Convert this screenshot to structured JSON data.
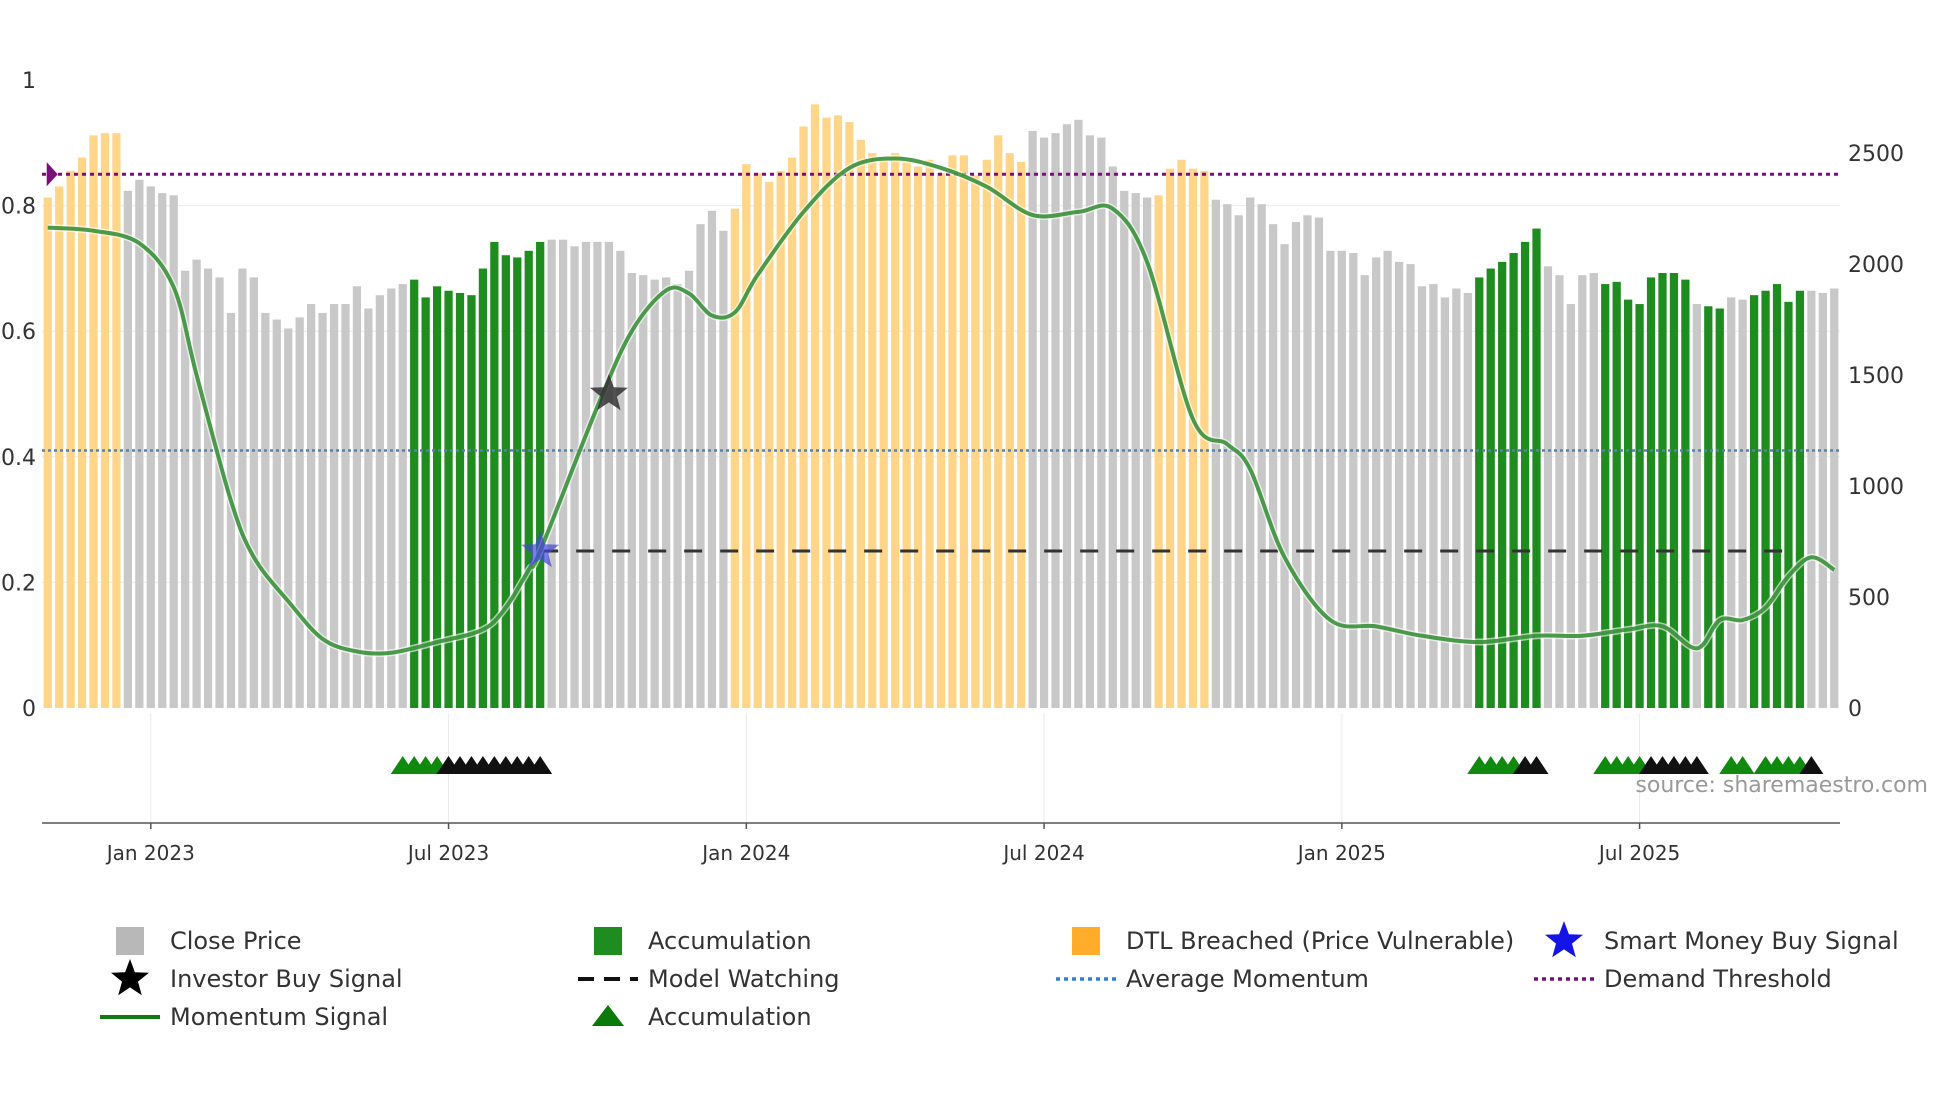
{
  "chart_data": {
    "type": "bar",
    "source": "source: sharemaestro.com",
    "left_axis": {
      "min": 0,
      "max": 1,
      "ticks": [
        0,
        0.2,
        0.4,
        0.6,
        0.8
      ],
      "tick_labels": [
        "0",
        "0.2",
        "0.4",
        "0.6",
        "0.8"
      ],
      "top_label": "1"
    },
    "right_axis": {
      "min": 0,
      "max": 2800,
      "ticks": [
        0,
        500,
        1000,
        1500,
        2000,
        2500
      ],
      "tick_labels": [
        "0",
        "500",
        "1000",
        "1500",
        "2000",
        "2500"
      ]
    },
    "x_axis": {
      "start_week": -4,
      "end_week": 152,
      "ticks": [
        {
          "week": 5,
          "label": "Jan 2023"
        },
        {
          "week": 31,
          "label": "Jul 2023"
        },
        {
          "week": 57,
          "label": "Jan 2024"
        },
        {
          "week": 83,
          "label": "Jul 2024"
        },
        {
          "week": 109,
          "label": "Jan 2025"
        },
        {
          "week": 135,
          "label": "Jul 2025"
        }
      ]
    },
    "close_price": [
      2300,
      2350,
      2420,
      2480,
      2580,
      2590,
      2590,
      2330,
      2380,
      2350,
      2320,
      2310,
      1970,
      2020,
      1980,
      1940,
      1780,
      1980,
      1940,
      1780,
      1750,
      1710,
      1760,
      1820,
      1780,
      1820,
      1820,
      1900,
      1800,
      1860,
      1890,
      1910,
      1930,
      1850,
      1900,
      1880,
      1870,
      1860,
      1980,
      2100,
      2040,
      2030,
      2060,
      2100,
      2110,
      2110,
      2080,
      2100,
      2100,
      2100,
      2060,
      1960,
      1950,
      1930,
      1940,
      1910,
      1970,
      2180,
      2240,
      2150,
      2250,
      2450,
      2410,
      2370,
      2420,
      2480,
      2620,
      2720,
      2660,
      2670,
      2640,
      2560,
      2500,
      2470,
      2500,
      2460,
      2440,
      2470,
      2410,
      2490,
      2490,
      2400,
      2470,
      2580,
      2500,
      2460,
      2600,
      2570,
      2590,
      2630,
      2650,
      2580,
      2570,
      2440,
      2330,
      2320,
      2300,
      2310,
      2430,
      2470,
      2430,
      2420,
      2290,
      2270,
      2220,
      2300,
      2270,
      2180,
      2090,
      2190,
      2220,
      2210,
      2060,
      2060,
      2050,
      1950,
      2030,
      2060,
      2010,
      2000,
      1900,
      1910,
      1850,
      1890,
      1870,
      1940,
      1980,
      2010,
      2050,
      2100,
      2160,
      1990,
      1950,
      1820,
      1950,
      1960,
      1910,
      1920,
      1840,
      1820,
      1940,
      1960,
      1960,
      1930,
      1820,
      1810,
      1800,
      1850,
      1840,
      1860,
      1880,
      1910,
      1830,
      1880,
      1880,
      1870,
      1890
    ],
    "accumulation_ranges": [
      [
        28,
        39
      ],
      [
        121,
        126
      ],
      [
        132,
        139
      ],
      [
        141,
        142
      ],
      [
        145,
        149
      ]
    ],
    "dtl_breached_ranges": [
      [
        -4,
        2
      ],
      [
        56,
        81
      ],
      [
        93,
        97
      ]
    ],
    "demand_threshold": 0.85,
    "average_momentum": 0.41,
    "model_watching": {
      "level": 0.25,
      "from_week": 39,
      "to_week": 148
    },
    "momentum_signal": [
      [
        -4,
        0.765
      ],
      [
        0,
        0.76
      ],
      [
        4,
        0.74
      ],
      [
        7,
        0.67
      ],
      [
        9,
        0.53
      ],
      [
        12,
        0.33
      ],
      [
        14,
        0.24
      ],
      [
        17,
        0.17
      ],
      [
        20,
        0.11
      ],
      [
        23,
        0.09
      ],
      [
        26,
        0.088
      ],
      [
        30,
        0.105
      ],
      [
        34,
        0.125
      ],
      [
        36,
        0.16
      ],
      [
        38,
        0.22
      ],
      [
        39,
        0.25
      ],
      [
        44,
        0.48
      ],
      [
        47,
        0.6
      ],
      [
        50,
        0.665
      ],
      [
        52,
        0.66
      ],
      [
        54,
        0.625
      ],
      [
        56,
        0.63
      ],
      [
        58,
        0.69
      ],
      [
        62,
        0.79
      ],
      [
        66,
        0.86
      ],
      [
        70,
        0.875
      ],
      [
        74,
        0.86
      ],
      [
        78,
        0.83
      ],
      [
        82,
        0.785
      ],
      [
        86,
        0.79
      ],
      [
        89,
        0.795
      ],
      [
        92,
        0.71
      ],
      [
        96,
        0.46
      ],
      [
        99,
        0.42
      ],
      [
        101,
        0.38
      ],
      [
        104,
        0.24
      ],
      [
        108,
        0.14
      ],
      [
        112,
        0.13
      ],
      [
        116,
        0.115
      ],
      [
        121,
        0.105
      ],
      [
        126,
        0.115
      ],
      [
        130,
        0.115
      ],
      [
        134,
        0.125
      ],
      [
        137,
        0.13
      ],
      [
        140,
        0.095
      ],
      [
        142,
        0.14
      ],
      [
        144,
        0.14
      ],
      [
        146,
        0.16
      ],
      [
        148,
        0.21
      ],
      [
        150,
        0.24
      ],
      [
        152,
        0.22
      ]
    ],
    "investor_buy_signals": [
      {
        "week": 45,
        "value": 0.5
      }
    ],
    "smart_money_buy_signals": [
      {
        "week": 39,
        "value": 0.25
      }
    ],
    "demand_markers": [
      {
        "week": -4,
        "value": 0.85
      }
    ],
    "accumulation_markers": {
      "green": [
        27,
        28,
        29,
        30,
        31,
        121,
        122,
        123,
        124,
        132,
        133,
        134,
        135,
        143,
        144,
        146,
        147,
        148,
        149
      ],
      "black": [
        31,
        32,
        33,
        34,
        35,
        36,
        37,
        38,
        39,
        125,
        126,
        136,
        137,
        138,
        139,
        140,
        150
      ]
    },
    "legend": [
      {
        "label": "Close Price",
        "icon": "gray-square",
        "color": "#b8b8b8"
      },
      {
        "label": "Accumulation",
        "icon": "green-square",
        "color": "#1e8c1e"
      },
      {
        "label": "DTL Breached (Price Vulnerable)",
        "icon": "orange-square",
        "color": "#ffad2a"
      },
      {
        "label": "Smart Money Buy Signal",
        "icon": "blue-star",
        "color": "#1414e6"
      },
      {
        "label": "Investor Buy Signal",
        "icon": "black-star",
        "color": "#000000"
      },
      {
        "label": "Model Watching",
        "icon": "black-dashed-line",
        "color": "#111111"
      },
      {
        "label": "Average Momentum",
        "icon": "blue-dotted-line",
        "color": "#3a7fc4"
      },
      {
        "label": "Demand Threshold",
        "icon": "purple-dotted-line",
        "color": "#7a0e7a"
      },
      {
        "label": "Momentum Signal",
        "icon": "green-line",
        "color": "#0f7a0f"
      },
      {
        "label": "Accumulation",
        "icon": "green-triangle",
        "color": "#0a7a0a"
      }
    ],
    "colors": {
      "close": "#c8c8c8",
      "accumulation": "#1e8c1e",
      "dtl": "#ffd58a",
      "momentum": "#2e8b2e",
      "momentum_highlight": "#0a7a0a",
      "avg_momentum": "#5a82a6",
      "demand": "#7a0e7a",
      "grid": "#ebebeb",
      "axis": "#555555",
      "text": "#333333"
    }
  }
}
